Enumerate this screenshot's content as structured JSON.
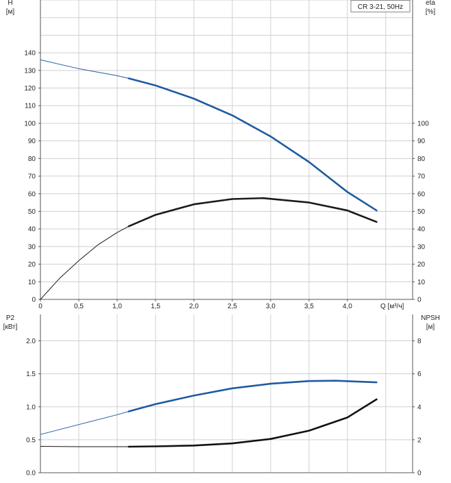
{
  "chart_data": [
    {
      "type": "line",
      "title": "",
      "legend_box": "CR 3-21, 50Hz",
      "legend_placement": "top-right",
      "grid": true,
      "x_axis": {
        "label": "Q [м³/ч]",
        "range": [
          0,
          4.85
        ],
        "ticks": [
          0,
          0.5,
          1.0,
          1.5,
          2.0,
          2.5,
          3.0,
          3.5,
          4.0
        ],
        "tick_labels": [
          "0",
          "0,5",
          "1,0",
          "1,5",
          "2,0",
          "2,5",
          "3,0",
          "3,5",
          "4,0"
        ]
      },
      "y_left": {
        "label_line1": "H",
        "label_line2": "[м]",
        "range": [
          0,
          170
        ],
        "ticks": [
          0,
          10,
          20,
          30,
          40,
          50,
          60,
          70,
          80,
          90,
          100,
          110,
          120,
          130,
          140
        ]
      },
      "y_right": {
        "label_line1": "eta",
        "label_line2": "[%]",
        "range": [
          0,
          170
        ],
        "ticks": [
          0,
          10,
          20,
          30,
          40,
          50,
          60,
          70,
          80,
          90,
          100
        ]
      },
      "series": [
        {
          "axis": "left",
          "color": "#1f5aa0",
          "x": [
            0,
            0.25,
            0.5,
            0.75,
            1.0,
            1.15,
            1.5,
            2.0,
            2.5,
            3.0,
            3.5,
            4.0,
            4.38
          ],
          "y": [
            136,
            133.5,
            131,
            129,
            127,
            125.5,
            121.5,
            114,
            104.5,
            92.5,
            78,
            61,
            50.5
          ],
          "thick_from": 1.15
        },
        {
          "axis": "right",
          "color": "#1a1a1a",
          "x": [
            0,
            0.25,
            0.5,
            0.75,
            1.0,
            1.15,
            1.5,
            2.0,
            2.5,
            2.9,
            3.5,
            4.0,
            4.38
          ],
          "y": [
            0,
            12,
            22,
            31,
            38,
            41.5,
            48,
            54,
            57,
            57.5,
            55,
            50.5,
            44
          ],
          "thick_from": 1.15
        }
      ]
    },
    {
      "type": "line",
      "title": "",
      "grid": true,
      "x_axis": {
        "range": [
          0,
          4.85
        ],
        "ticks": [
          0,
          0.5,
          1.0,
          1.5,
          2.0,
          2.5,
          3.0,
          3.5,
          4.0
        ]
      },
      "y_left": {
        "label_line1": "P2",
        "label_line2": "[кВт]",
        "range": [
          0,
          2.4
        ],
        "ticks": [
          0.0,
          0.5,
          1.0,
          1.5,
          2.0
        ],
        "tick_labels": [
          "0.0",
          "0.5",
          "1.0",
          "1.5",
          "2.0"
        ]
      },
      "y_right": {
        "label_line1": "NPSH",
        "label_line2": "[м]",
        "range": [
          0,
          9.6
        ],
        "ticks": [
          0,
          2,
          4,
          6,
          8
        ]
      },
      "series": [
        {
          "axis": "left",
          "color": "#1f5aa0",
          "x": [
            0,
            0.5,
            1.0,
            1.15,
            1.5,
            2.0,
            2.5,
            3.0,
            3.5,
            3.85,
            4.38
          ],
          "y": [
            0.58,
            0.73,
            0.88,
            0.93,
            1.04,
            1.17,
            1.28,
            1.35,
            1.39,
            1.395,
            1.37
          ],
          "thick_from": 1.15
        },
        {
          "axis": "right",
          "color": "#111111",
          "x": [
            0,
            0.5,
            1.0,
            1.15,
            1.5,
            2.0,
            2.5,
            3.0,
            3.5,
            4.0,
            4.38
          ],
          "y": [
            1.6,
            1.58,
            1.58,
            1.58,
            1.6,
            1.65,
            1.78,
            2.05,
            2.55,
            3.35,
            4.45
          ],
          "thick_from": 1.15
        }
      ]
    }
  ]
}
